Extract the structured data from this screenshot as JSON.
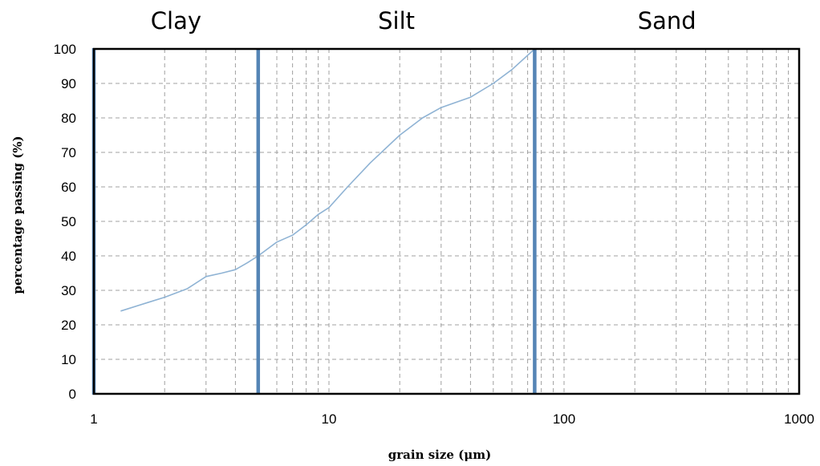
{
  "chart_data": {
    "type": "line",
    "title": "",
    "xlabel": "grain size (μm)",
    "ylabel": "percentage passing (%)",
    "x_scale": "log",
    "xlim": [
      1,
      1000
    ],
    "ylim": [
      0,
      100
    ],
    "x_ticks": [
      "1",
      "10",
      "100",
      "1000"
    ],
    "y_ticks": [
      "0",
      "10",
      "20",
      "30",
      "40",
      "50",
      "60",
      "70",
      "80",
      "90",
      "100"
    ],
    "grid": true,
    "zones": [
      {
        "label": "Clay",
        "from": 1,
        "to": 5
      },
      {
        "label": "Silt",
        "from": 5,
        "to": 75
      },
      {
        "label": "Sand",
        "from": 75,
        "to": 1000
      }
    ],
    "boundaries": [
      1,
      5,
      75
    ],
    "series": [
      {
        "x": [
          1.3,
          1.7,
          2.0,
          2.5,
          3.0,
          3.5,
          4.0,
          4.5,
          5.0,
          6.0,
          7.0,
          8.0,
          9.0,
          10,
          12,
          15,
          20,
          25,
          30,
          40,
          50,
          60,
          75
        ],
        "y": [
          24,
          26.5,
          28,
          30.5,
          34,
          35,
          36,
          38,
          40,
          44,
          46,
          49,
          52,
          54,
          60,
          67,
          75,
          80,
          83,
          86,
          90,
          94,
          100
        ]
      }
    ],
    "colors": {
      "curve": "#8fb3d4",
      "boundary": "#5585b5",
      "grid": "#a0a0a0",
      "frame": "#000000"
    }
  }
}
